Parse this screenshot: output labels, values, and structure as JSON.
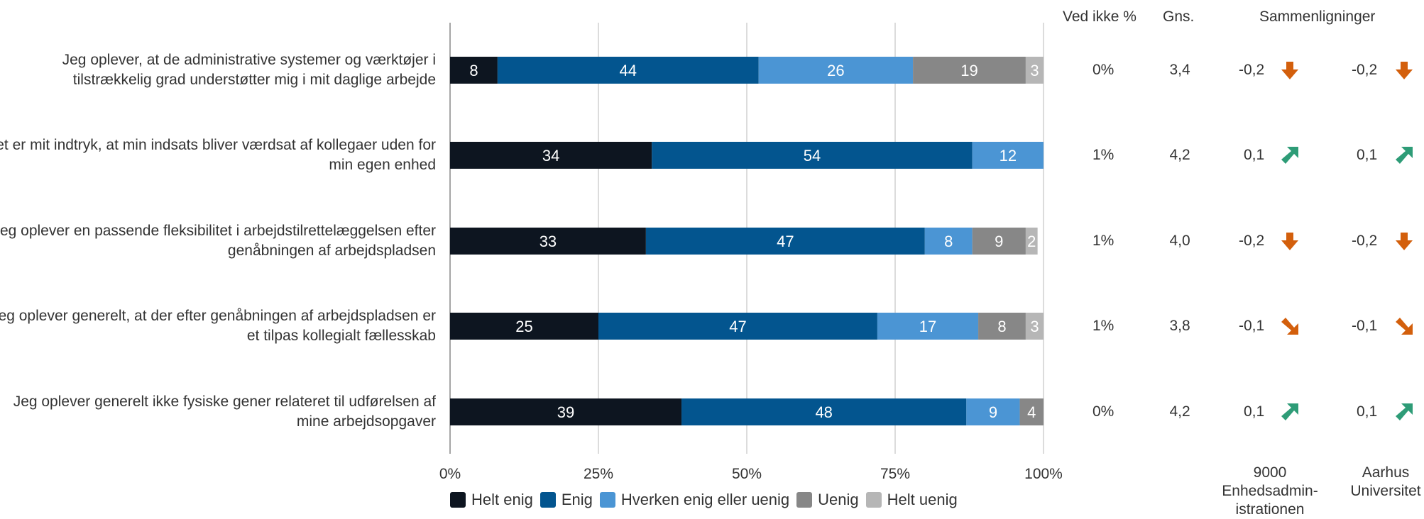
{
  "chart_data": {
    "type": "bar",
    "orientation": "horizontal-stacked",
    "xlim": [
      0,
      100
    ],
    "x_ticks": [
      "0%",
      "25%",
      "50%",
      "75%",
      "100%"
    ],
    "grid": true,
    "legend_position": "bottom",
    "categories": [
      "Jeg oplever, at de administrative systemer og værktøjer i tilstrækkelig grad understøtter mig i mit daglige arbejde",
      "Det er mit indtryk, at min indsats bliver værdsat af kollegaer uden for min egen enhed",
      "Jeg oplever en passende fleksibilitet i arbejdstilrettelæggelsen efter genåbningen af arbejdspladsen",
      "Jeg oplever generelt, at der efter genåbningen af arbejdspladsen er et tilpas kollegialt fællesskab",
      "Jeg oplever generelt ikke fysiske gener relateret til udførelsen af mine arbejdsopgaver"
    ],
    "series": [
      {
        "name": "Helt enig",
        "color": "#0d1520",
        "values": [
          8,
          34,
          33,
          25,
          39
        ]
      },
      {
        "name": "Enig",
        "color": "#03558f",
        "values": [
          44,
          54,
          47,
          47,
          48
        ]
      },
      {
        "name": "Hverken enig eller uenig",
        "color": "#4b95d4",
        "values": [
          26,
          12,
          8,
          17,
          9
        ]
      },
      {
        "name": "Uenig",
        "color": "#878787",
        "values": [
          19,
          0,
          9,
          8,
          4
        ]
      },
      {
        "name": "Helt uenig",
        "color": "#b6b6b6",
        "values": [
          3,
          0,
          2,
          3,
          0
        ]
      }
    ],
    "table": {
      "headers": {
        "ved_ikke": "Ved ikke %",
        "gns": "Gns.",
        "sammenligninger": "Sammenligninger"
      },
      "comparison_labels": [
        "9000 Enhedsadmin-istrationen",
        "Aarhus Universitet"
      ],
      "rows": [
        {
          "ved_ikke": "0%",
          "gns": "3,4",
          "cmp": [
            {
              "value": "-0,2",
              "dir": "down"
            },
            {
              "value": "-0,2",
              "dir": "down"
            }
          ]
        },
        {
          "ved_ikke": "1%",
          "gns": "4,2",
          "cmp": [
            {
              "value": "0,1",
              "dir": "up-right"
            },
            {
              "value": "0,1",
              "dir": "up-right"
            }
          ]
        },
        {
          "ved_ikke": "1%",
          "gns": "4,0",
          "cmp": [
            {
              "value": "-0,2",
              "dir": "down"
            },
            {
              "value": "-0,2",
              "dir": "down"
            }
          ]
        },
        {
          "ved_ikke": "1%",
          "gns": "3,8",
          "cmp": [
            {
              "value": "-0,1",
              "dir": "down-right"
            },
            {
              "value": "-0,1",
              "dir": "down-right"
            }
          ]
        },
        {
          "ved_ikke": "0%",
          "gns": "4,2",
          "cmp": [
            {
              "value": "0,1",
              "dir": "up-right"
            },
            {
              "value": "0,1",
              "dir": "up-right"
            }
          ]
        }
      ]
    },
    "arrow_colors": {
      "down": "#d35f0c",
      "up": "#2e9c77"
    }
  }
}
